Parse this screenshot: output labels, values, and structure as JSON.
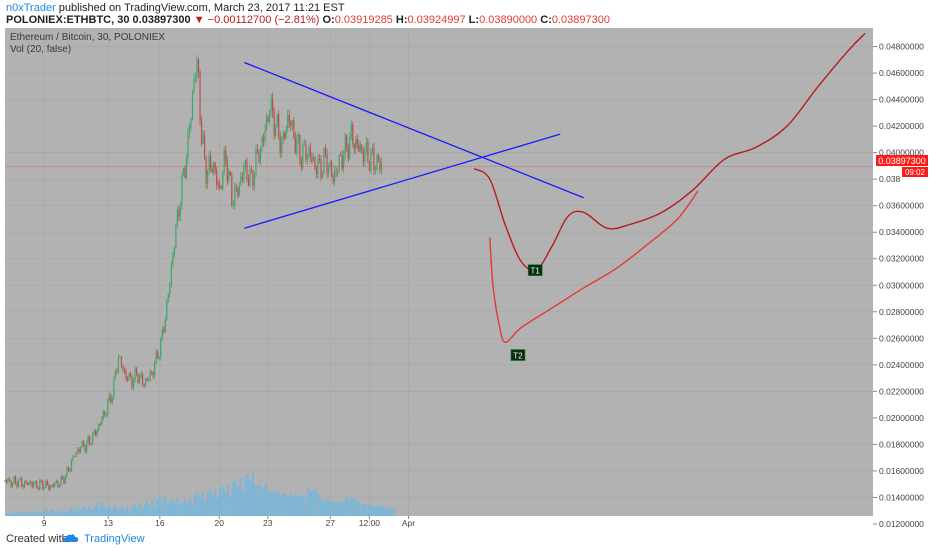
{
  "header": {
    "author": "n0xTrader",
    "published_text": " published on TradingView.com, March 23, 2017 11:21 EST",
    "symbol": "POLONIEX:ETHBTC, 30",
    "price": "0.03897300",
    "change": "−0.00112700 (−2.81%)",
    "o_label": "O:",
    "o_val": "0.03919285",
    "h_label": "H:",
    "h_val": "0.03924997",
    "l_label": "L:",
    "l_val": "0.03890000",
    "c_label": "C:",
    "c_val": "0.03897300"
  },
  "legend": {
    "title": "Ethereum / Bitcoin, 30, POLONIEX",
    "volume": "Vol (20, false)"
  },
  "price_tag": {
    "value": "0.03897300",
    "countdown": "09:02"
  },
  "annotations": {
    "t1": "T1",
    "t2": "T2"
  },
  "footer": {
    "created": "Created with",
    "brand": "TradingView"
  },
  "colors": {
    "plot_bg": "#b2b2b2",
    "candle_up": "#3fa66b",
    "candle_down": "#b9504b",
    "volume": "#6fb7e0",
    "trendline": "#1a1aff",
    "projection_t1": "#b71c1c",
    "projection_t2": "#e53935",
    "current_price": "#ff1a1a"
  },
  "chart_data": {
    "type": "candlestick",
    "title": "Ethereum / Bitcoin, 30, POLONIEX",
    "y_axis_position": "right",
    "ylim": [
      0.0126,
      0.0494
    ],
    "yticks": [
      0.048,
      0.046,
      0.044,
      0.042,
      0.04,
      0.038,
      0.036,
      0.034,
      0.032,
      0.03,
      0.028,
      0.026,
      0.024,
      0.022,
      0.02,
      0.018,
      0.016,
      0.014,
      0.012
    ],
    "ytick_labels": [
      "0.04800000",
      "0.04600000",
      "0.04400000",
      "0.04200000",
      "0.04000000",
      "0.038",
      "0.03600000",
      "0.03400000",
      "0.03200000",
      "0.03000000",
      "0.02800000",
      "0.02600000",
      "0.02400000",
      "0.02200000",
      "0.02000000",
      "0.01800000",
      "0.01600000",
      "0.01400000",
      "0.01200000"
    ],
    "xticks": [
      "9",
      "13",
      "16",
      "20",
      "23",
      "27",
      "12:00",
      "Apr"
    ],
    "price_path": [
      {
        "x": 0.0,
        "y": 0.0153
      },
      {
        "x": 0.5,
        "y": 0.0151
      },
      {
        "x": 1.0,
        "y": 0.0152
      },
      {
        "x": 1.5,
        "y": 0.015
      },
      {
        "x": 2.0,
        "y": 0.0151
      },
      {
        "x": 2.5,
        "y": 0.0149
      },
      {
        "x": 3.0,
        "y": 0.015
      },
      {
        "x": 3.5,
        "y": 0.0148
      },
      {
        "x": 4.0,
        "y": 0.015
      },
      {
        "x": 4.5,
        "y": 0.0152
      },
      {
        "x": 5.0,
        "y": 0.016
      },
      {
        "x": 5.5,
        "y": 0.0172
      },
      {
        "x": 6.0,
        "y": 0.0178
      },
      {
        "x": 6.5,
        "y": 0.018
      },
      {
        "x": 7.0,
        "y": 0.0186
      },
      {
        "x": 7.5,
        "y": 0.0195
      },
      {
        "x": 8.0,
        "y": 0.0206
      },
      {
        "x": 8.5,
        "y": 0.0218
      },
      {
        "x": 9.0,
        "y": 0.0246
      },
      {
        "x": 9.5,
        "y": 0.0233
      },
      {
        "x": 10.0,
        "y": 0.0228
      },
      {
        "x": 10.5,
        "y": 0.0233
      },
      {
        "x": 11.0,
        "y": 0.0226
      },
      {
        "x": 11.5,
        "y": 0.0231
      },
      {
        "x": 12.0,
        "y": 0.0243
      },
      {
        "x": 12.5,
        "y": 0.0262
      },
      {
        "x": 13.0,
        "y": 0.0296
      },
      {
        "x": 13.5,
        "y": 0.0338
      },
      {
        "x": 14.0,
        "y": 0.0372
      },
      {
        "x": 14.5,
        "y": 0.0405
      },
      {
        "x": 15.0,
        "y": 0.0455
      },
      {
        "x": 15.3,
        "y": 0.0468
      },
      {
        "x": 15.6,
        "y": 0.041
      },
      {
        "x": 16.0,
        "y": 0.0385
      },
      {
        "x": 16.5,
        "y": 0.0392
      },
      {
        "x": 17.0,
        "y": 0.037
      },
      {
        "x": 17.5,
        "y": 0.0398
      },
      {
        "x": 18.0,
        "y": 0.0366
      },
      {
        "x": 18.5,
        "y": 0.0372
      },
      {
        "x": 19.0,
        "y": 0.039
      },
      {
        "x": 19.5,
        "y": 0.0378
      },
      {
        "x": 20.0,
        "y": 0.0396
      },
      {
        "x": 20.5,
        "y": 0.041
      },
      {
        "x": 21.0,
        "y": 0.0435
      },
      {
        "x": 21.5,
        "y": 0.042
      },
      {
        "x": 22.0,
        "y": 0.0405
      },
      {
        "x": 22.5,
        "y": 0.0428
      },
      {
        "x": 23.0,
        "y": 0.041
      },
      {
        "x": 23.5,
        "y": 0.0398
      },
      {
        "x": 24.0,
        "y": 0.0402
      },
      {
        "x": 24.5,
        "y": 0.0392
      },
      {
        "x": 25.0,
        "y": 0.0388
      },
      {
        "x": 25.5,
        "y": 0.0396
      },
      {
        "x": 26.0,
        "y": 0.038
      },
      {
        "x": 26.5,
        "y": 0.0392
      },
      {
        "x": 27.0,
        "y": 0.0402
      },
      {
        "x": 27.5,
        "y": 0.0412
      },
      {
        "x": 28.0,
        "y": 0.0404
      },
      {
        "x": 28.5,
        "y": 0.04
      },
      {
        "x": 29.0,
        "y": 0.0396
      },
      {
        "x": 29.5,
        "y": 0.0392
      },
      {
        "x": 30.0,
        "y": 0.039
      }
    ],
    "volume": [
      0.08,
      0.12,
      0.1,
      0.15,
      0.12,
      0.18,
      0.22,
      0.3,
      0.25,
      0.2,
      0.28,
      0.35,
      0.45,
      0.4,
      0.38,
      0.55,
      0.6,
      0.7,
      0.85,
      1.0,
      0.75,
      0.6,
      0.55,
      0.5,
      0.65,
      0.4,
      0.35,
      0.45,
      0.3,
      0.25,
      0.2
    ],
    "current_price": 0.038973,
    "trendlines": [
      {
        "name": "upper",
        "from": {
          "x": 15.3,
          "y": 0.0468
        },
        "to": {
          "x": 37.0,
          "y": 0.0366
        }
      },
      {
        "name": "lower",
        "from": {
          "x": 15.3,
          "y": 0.0343
        },
        "to": {
          "x": 35.5,
          "y": 0.0414
        }
      }
    ],
    "projections": [
      {
        "name": "T1",
        "points": [
          {
            "x": 30.0,
            "y": 0.0388
          },
          {
            "x": 31.0,
            "y": 0.038
          },
          {
            "x": 32.0,
            "y": 0.0345
          },
          {
            "x": 33.0,
            "y": 0.0318
          },
          {
            "x": 34.0,
            "y": 0.0312
          },
          {
            "x": 35.0,
            "y": 0.033
          },
          {
            "x": 36.0,
            "y": 0.0352
          },
          {
            "x": 37.0,
            "y": 0.0355
          },
          {
            "x": 38.5,
            "y": 0.0343
          },
          {
            "x": 40.0,
            "y": 0.0346
          },
          {
            "x": 42.0,
            "y": 0.0355
          },
          {
            "x": 44.0,
            "y": 0.0372
          },
          {
            "x": 46.0,
            "y": 0.0395
          },
          {
            "x": 48.0,
            "y": 0.0404
          },
          {
            "x": 50.0,
            "y": 0.042
          },
          {
            "x": 52.0,
            "y": 0.045
          },
          {
            "x": 54.0,
            "y": 0.0478
          },
          {
            "x": 55.0,
            "y": 0.049
          }
        ]
      },
      {
        "name": "T2",
        "points": [
          {
            "x": 31.0,
            "y": 0.0336
          },
          {
            "x": 31.2,
            "y": 0.03
          },
          {
            "x": 31.6,
            "y": 0.027
          },
          {
            "x": 32.0,
            "y": 0.0257
          },
          {
            "x": 33.0,
            "y": 0.0268
          },
          {
            "x": 35.0,
            "y": 0.0283
          },
          {
            "x": 37.0,
            "y": 0.0298
          },
          {
            "x": 39.0,
            "y": 0.0312
          },
          {
            "x": 41.0,
            "y": 0.033
          },
          {
            "x": 43.0,
            "y": 0.035
          },
          {
            "x": 44.3,
            "y": 0.0371
          }
        ]
      }
    ],
    "labels": [
      {
        "text": "T1",
        "x": 33.9,
        "y": 0.0311
      },
      {
        "text": "T2",
        "x": 32.8,
        "y": 0.0247
      }
    ]
  }
}
